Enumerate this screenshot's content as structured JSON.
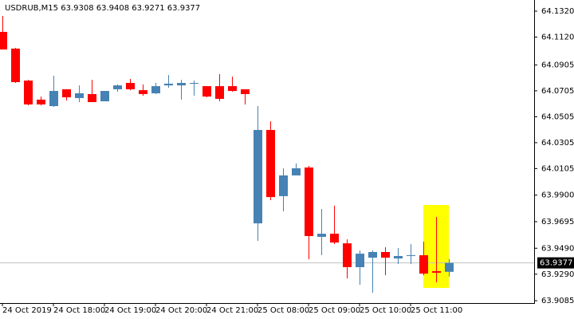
{
  "chart_data": {
    "type": "candlestick",
    "title": "USDRUB,M15  63.9308 63.9408 63.9271 63.9377",
    "categories": [
      "24 Oct 2019",
      null,
      null,
      null,
      "24 Oct 18:00",
      null,
      null,
      null,
      "24 Oct 19:00",
      null,
      null,
      null,
      "24 Oct 20:00",
      null,
      null,
      null,
      "24 Oct 21:00",
      null,
      null,
      null,
      "25 Oct 08:00",
      null,
      null,
      null,
      "25 Oct 09:00",
      null,
      null,
      null,
      "25 Oct 10:00",
      null,
      null,
      null,
      "25 Oct 11:00",
      null,
      null,
      null
    ],
    "open": [
      64.116,
      64.1031,
      64.0784,
      64.0637,
      64.0587,
      64.0717,
      64.0649,
      64.068,
      64.0624,
      64.0717,
      64.0766,
      64.071,
      64.0686,
      64.0747,
      64.0747,
      64.076,
      64.0741,
      64.0741,
      64.0741,
      64.0717,
      63.9682,
      64.0403,
      63.9892,
      64.0052,
      64.0113,
      63.9578,
      63.9602,
      63.9528,
      63.9344,
      63.9417,
      63.9461,
      63.9411,
      63.943,
      63.9436,
      63.9313,
      63.9308
    ],
    "high": [
      64.1283,
      64.1037,
      64.079,
      64.0661,
      64.0821,
      64.0717,
      64.0747,
      64.079,
      64.0704,
      64.0754,
      64.0797,
      64.0754,
      64.0766,
      64.0827,
      64.079,
      64.0784,
      64.0741,
      64.0834,
      64.0815,
      64.0717,
      64.0587,
      64.047,
      64.0107,
      64.0144,
      64.0126,
      63.9793,
      63.9818,
      63.9559,
      63.9473,
      63.9473,
      63.9498,
      63.9491,
      63.9522,
      63.9541,
      63.9731,
      63.9408
    ],
    "low": [
      64.1024,
      64.0766,
      64.0593,
      64.0593,
      64.0581,
      64.063,
      64.0618,
      64.0618,
      64.0624,
      64.0698,
      64.071,
      64.0667,
      64.068,
      64.0729,
      64.0637,
      64.0667,
      64.0655,
      64.0624,
      64.0698,
      64.06,
      63.9547,
      63.9861,
      63.9775,
      64.0052,
      63.9405,
      63.9436,
      63.9522,
      63.9257,
      63.9208,
      63.9147,
      63.9282,
      63.9368,
      63.9368,
      63.9282,
      63.9227,
      63.9271
    ],
    "close": [
      64.1024,
      64.0772,
      64.06,
      64.06,
      64.0704,
      64.0655,
      64.0686,
      64.0618,
      64.0704,
      64.0747,
      64.0717,
      64.068,
      64.0741,
      64.076,
      64.0766,
      64.0766,
      64.0661,
      64.0643,
      64.0704,
      64.068,
      64.0403,
      63.9885,
      64.0052,
      64.0107,
      63.9584,
      63.9602,
      63.9534,
      63.9344,
      63.9448,
      63.9461,
      63.9417,
      63.943,
      63.9436,
      63.9294,
      63.9301,
      63.9377
    ],
    "up_color": "#4682b4",
    "down_color": "#ff0000",
    "ylim": [
      63.9067,
      64.1406
    ],
    "yticks": [
      {
        "value": 64.132,
        "label": "64.1320"
      },
      {
        "value": 64.112,
        "label": "64.1120"
      },
      64.0905,
      64.0705,
      64.0505,
      64.0305,
      64.0105,
      {
        "value": 63.99,
        "label": "63.9900"
      },
      63.9695,
      {
        "value": 63.949,
        "label": "63.9490"
      },
      {
        "value": 63.929,
        "label": "63.9290"
      },
      63.9085
    ],
    "current_price": 63.9377
  }
}
